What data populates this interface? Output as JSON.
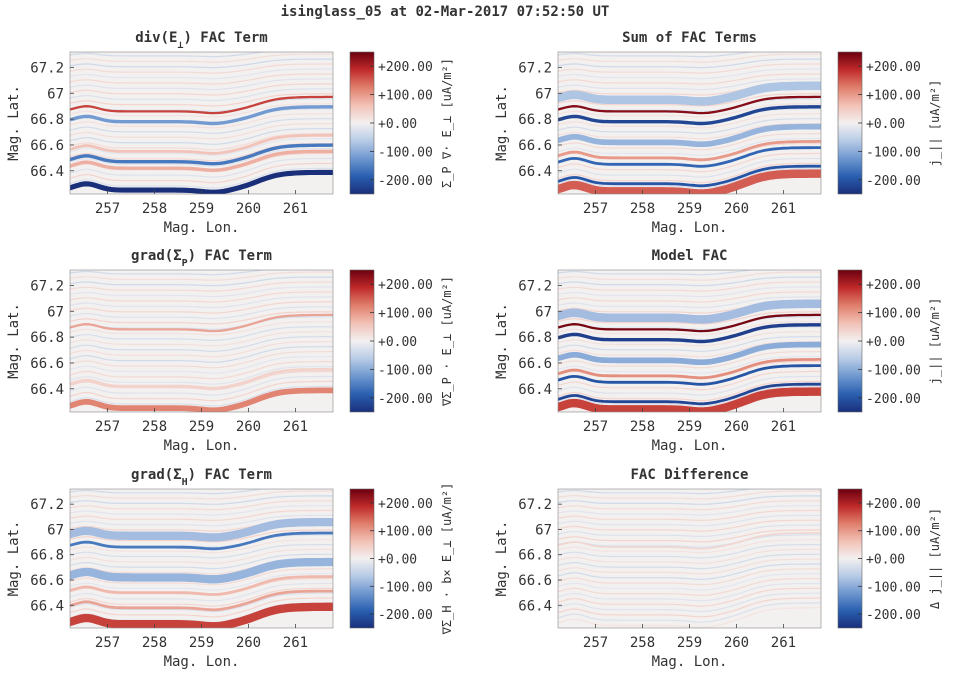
{
  "figure": {
    "suptitle": "isinglass_05 at 02-Mar-2017 07:52:50 UT"
  },
  "colormap": {
    "name": "diverging-blue-white-red",
    "colors": [
      "#1a2f7a",
      "#2a5fb0",
      "#6e97cf",
      "#b7cbe6",
      "#f3f0f0",
      "#f2c1b6",
      "#e07f6c",
      "#bf2a2a",
      "#6b0010"
    ]
  },
  "chart_data": [
    {
      "id": "div-e",
      "type": "heatmap",
      "title_main": "div(E",
      "title_sub": "⊥",
      "title_tail": ") FAC Term",
      "xlabel": "Mag. Lon.",
      "ylabel": "Mag. Lat.",
      "xlim": [
        256.2,
        261.8
      ],
      "ylim": [
        66.22,
        67.32
      ],
      "xticks": [
        257,
        258,
        259,
        260,
        261
      ],
      "yticks": [
        66.4,
        66.6,
        66.8,
        67,
        67.2
      ],
      "ytick_labels": [
        "66.4",
        "66.6",
        "66.8",
        "67",
        "67.2"
      ],
      "clim": [
        -250,
        250
      ],
      "cbar_ticks": [
        200,
        100,
        0,
        -100,
        -200
      ],
      "cbar_tick_labels": [
        "+200.00",
        "+100.00",
        "+0.00",
        "-100.00",
        "-200.00"
      ],
      "cbar_label": "Σ_P ∇· E_⊥ [uA/m²]",
      "features": [
        {
          "lat0": 66.25,
          "amp": -260,
          "width": 0.018
        },
        {
          "lat0": 66.42,
          "amp": 80,
          "width": 0.012
        },
        {
          "lat0": 66.47,
          "amp": -160,
          "width": 0.012
        },
        {
          "lat0": 66.55,
          "amp": 60,
          "width": 0.01
        },
        {
          "lat0": 66.78,
          "amp": -120,
          "width": 0.012
        },
        {
          "lat0": 66.86,
          "amp": 170,
          "width": 0.008
        }
      ]
    },
    {
      "id": "sum",
      "type": "heatmap",
      "title_main": "Sum of FAC Terms",
      "title_sub": "",
      "title_tail": "",
      "xlabel": "Mag. Lon.",
      "ylabel": "Mag. Lat.",
      "xlim": [
        256.2,
        261.8
      ],
      "ylim": [
        66.22,
        67.32
      ],
      "xticks": [
        257,
        258,
        259,
        260,
        261
      ],
      "yticks": [
        66.4,
        66.6,
        66.8,
        67,
        67.2
      ],
      "ytick_labels": [
        "66.4",
        "66.6",
        "66.8",
        "67",
        "67.2"
      ],
      "clim": [
        -250,
        250
      ],
      "cbar_ticks": [
        200,
        100,
        0,
        -100,
        -200
      ],
      "cbar_tick_labels": [
        "+200.00",
        "+100.00",
        "+0.00",
        "-100.00",
        "-200.00"
      ],
      "cbar_label": "j_|| [uA/m²]",
      "features": [
        {
          "lat0": 66.24,
          "amp": 150,
          "width": 0.03
        },
        {
          "lat0": 66.3,
          "amp": -200,
          "width": 0.01
        },
        {
          "lat0": 66.45,
          "amp": -180,
          "width": 0.01
        },
        {
          "lat0": 66.5,
          "amp": 100,
          "width": 0.01
        },
        {
          "lat0": 66.62,
          "amp": -90,
          "width": 0.02
        },
        {
          "lat0": 66.78,
          "amp": -220,
          "width": 0.012
        },
        {
          "lat0": 66.86,
          "amp": 230,
          "width": 0.008
        },
        {
          "lat0": 66.95,
          "amp": -70,
          "width": 0.03
        }
      ]
    },
    {
      "id": "grad-p",
      "type": "heatmap",
      "title_main": "grad(Σ",
      "title_sub": "P",
      "title_tail": ") FAC Term",
      "xlabel": "Mag. Lon.",
      "ylabel": "Mag. Lat.",
      "xlim": [
        256.2,
        261.8
      ],
      "ylim": [
        66.22,
        67.32
      ],
      "xticks": [
        257,
        258,
        259,
        260,
        261
      ],
      "yticks": [
        66.4,
        66.6,
        66.8,
        67,
        67.2
      ],
      "ytick_labels": [
        "66.4",
        "66.6",
        "66.8",
        "67",
        "67.2"
      ],
      "clim": [
        -250,
        250
      ],
      "cbar_ticks": [
        200,
        100,
        0,
        -100,
        -200
      ],
      "cbar_tick_labels": [
        "+200.00",
        "+100.00",
        "+0.00",
        "-100.00",
        "-200.00"
      ],
      "cbar_label": "∇Σ_P · E_⊥ [uA/m²]",
      "features": [
        {
          "lat0": 66.25,
          "amp": 120,
          "width": 0.02
        },
        {
          "lat0": 66.42,
          "amp": 40,
          "width": 0.01
        },
        {
          "lat0": 66.86,
          "amp": 90,
          "width": 0.008
        }
      ]
    },
    {
      "id": "model",
      "type": "heatmap",
      "title_main": "Model FAC",
      "title_sub": "",
      "title_tail": "",
      "xlabel": "Mag. Lon.",
      "ylabel": "Mag. Lat.",
      "xlim": [
        256.2,
        261.8
      ],
      "ylim": [
        66.22,
        67.32
      ],
      "xticks": [
        257,
        258,
        259,
        260,
        261
      ],
      "yticks": [
        66.4,
        66.6,
        66.8,
        67,
        67.2
      ],
      "ytick_labels": [
        "66.4",
        "66.6",
        "66.8",
        "67",
        "67.2"
      ],
      "clim": [
        -250,
        250
      ],
      "cbar_ticks": [
        200,
        100,
        0,
        -100,
        -200
      ],
      "cbar_tick_labels": [
        "+200.00",
        "+100.00",
        "+0.00",
        "-100.00",
        "-200.00"
      ],
      "cbar_label": "j_|| [uA/m²]",
      "features": [
        {
          "lat0": 66.24,
          "amp": 170,
          "width": 0.03
        },
        {
          "lat0": 66.3,
          "amp": -220,
          "width": 0.01
        },
        {
          "lat0": 66.45,
          "amp": -200,
          "width": 0.01
        },
        {
          "lat0": 66.5,
          "amp": 110,
          "width": 0.01
        },
        {
          "lat0": 66.62,
          "amp": -100,
          "width": 0.02
        },
        {
          "lat0": 66.78,
          "amp": -230,
          "width": 0.012
        },
        {
          "lat0": 66.86,
          "amp": 240,
          "width": 0.008
        },
        {
          "lat0": 66.95,
          "amp": -80,
          "width": 0.03
        }
      ]
    },
    {
      "id": "grad-h",
      "type": "heatmap",
      "title_main": "grad(Σ",
      "title_sub": "H",
      "title_tail": ") FAC Term",
      "xlabel": "Mag. Lon.",
      "ylabel": "Mag. Lat.",
      "xlim": [
        256.2,
        261.8
      ],
      "ylim": [
        66.22,
        67.32
      ],
      "xticks": [
        257,
        258,
        259,
        260,
        261
      ],
      "yticks": [
        66.4,
        66.6,
        66.8,
        67,
        67.2
      ],
      "ytick_labels": [
        "66.4",
        "66.6",
        "66.8",
        "67",
        "67.2"
      ],
      "clim": [
        -250,
        250
      ],
      "cbar_ticks": [
        200,
        100,
        0,
        -100,
        -200
      ],
      "cbar_tick_labels": [
        "+200.00",
        "+100.00",
        "+0.00",
        "-100.00",
        "-200.00"
      ],
      "cbar_label": "∇Σ_H · b× E_⊥ [uA/m²]",
      "features": [
        {
          "lat0": 66.25,
          "amp": 170,
          "width": 0.03
        },
        {
          "lat0": 66.38,
          "amp": 90,
          "width": 0.01
        },
        {
          "lat0": 66.5,
          "amp": 70,
          "width": 0.01
        },
        {
          "lat0": 66.62,
          "amp": -90,
          "width": 0.03
        },
        {
          "lat0": 66.86,
          "amp": -160,
          "width": 0.01
        },
        {
          "lat0": 66.95,
          "amp": -80,
          "width": 0.03
        }
      ]
    },
    {
      "id": "diff",
      "type": "heatmap",
      "title_main": "FAC Difference",
      "title_sub": "",
      "title_tail": "",
      "xlabel": "Mag. Lon.",
      "ylabel": "Mag. Lat.",
      "xlim": [
        256.2,
        261.8
      ],
      "ylim": [
        66.22,
        67.32
      ],
      "xticks": [
        257,
        258,
        259,
        260,
        261
      ],
      "yticks": [
        66.4,
        66.6,
        66.8,
        67,
        67.2
      ],
      "ytick_labels": [
        "66.4",
        "66.6",
        "66.8",
        "67",
        "67.2"
      ],
      "clim": [
        -250,
        250
      ],
      "cbar_ticks": [
        200,
        100,
        0,
        -100,
        -200
      ],
      "cbar_tick_labels": [
        "+200.00",
        "+100.00",
        "+0.00",
        "-100.00",
        "-200.00"
      ],
      "cbar_label": "Δ j_|| [uA/m²]",
      "features": [
        {
          "lat0": 66.86,
          "amp": 35,
          "width": 0.006
        }
      ]
    }
  ]
}
